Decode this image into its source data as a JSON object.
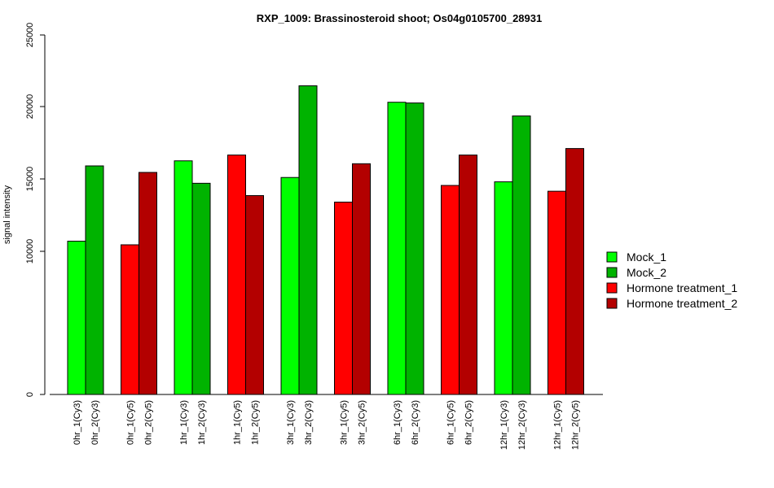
{
  "chart_data": {
    "type": "bar",
    "title": "RXP_1009: Brassinosteroid shoot; Os04g0105700_28931",
    "xlabel": "",
    "ylabel": "signal intensity",
    "ylim": [
      0,
      25000
    ],
    "y_ticks": [
      0,
      10000,
      15000,
      20000,
      25000
    ],
    "y_tick_labels": [
      "0",
      "10000",
      "15000",
      "20000",
      "25000"
    ],
    "y_scale": "non-linear (0 to 10000 compressed)",
    "grid": false,
    "legend_position": "right",
    "legend": [
      {
        "label": "Mock_1",
        "color": "#00ff00"
      },
      {
        "label": "Mock_2",
        "color": "#00b300"
      },
      {
        "label": "Hormone treatment_1",
        "color": "#ff0000"
      },
      {
        "label": "Hormone treatment_2",
        "color": "#b30000"
      }
    ],
    "groups": [
      {
        "bars": [
          {
            "label": "0hr_1(Cy3)",
            "value": 10700,
            "series": 0
          },
          {
            "label": "0hr_2(Cy3)",
            "value": 15900,
            "series": 1
          }
        ]
      },
      {
        "bars": [
          {
            "label": "0hr_1(Cy5)",
            "value": 10450,
            "series": 2
          },
          {
            "label": "0hr_2(Cy5)",
            "value": 15450,
            "series": 3
          }
        ]
      },
      {
        "bars": [
          {
            "label": "1hr_1(Cy3)",
            "value": 16250,
            "series": 0
          },
          {
            "label": "1hr_2(Cy3)",
            "value": 14700,
            "series": 1
          }
        ]
      },
      {
        "bars": [
          {
            "label": "1hr_1(Cy5)",
            "value": 16650,
            "series": 2
          },
          {
            "label": "1hr_2(Cy5)",
            "value": 13850,
            "series": 3
          }
        ]
      },
      {
        "bars": [
          {
            "label": "3hr_1(Cy3)",
            "value": 15100,
            "series": 0
          },
          {
            "label": "3hr_2(Cy3)",
            "value": 21450,
            "series": 1
          }
        ]
      },
      {
        "bars": [
          {
            "label": "3hr_1(Cy5)",
            "value": 13400,
            "series": 2
          },
          {
            "label": "3hr_2(Cy5)",
            "value": 16050,
            "series": 3
          }
        ]
      },
      {
        "bars": [
          {
            "label": "6hr_1(Cy3)",
            "value": 20300,
            "series": 0
          },
          {
            "label": "6hr_2(Cy3)",
            "value": 20250,
            "series": 1
          }
        ]
      },
      {
        "bars": [
          {
            "label": "6hr_1(Cy5)",
            "value": 14550,
            "series": 2
          },
          {
            "label": "6hr_2(Cy5)",
            "value": 16650,
            "series": 3
          }
        ]
      },
      {
        "bars": [
          {
            "label": "12hr_1(Cy3)",
            "value": 14800,
            "series": 0
          },
          {
            "label": "12hr_2(Cy3)",
            "value": 19350,
            "series": 1
          }
        ]
      },
      {
        "bars": [
          {
            "label": "12hr_1(Cy5)",
            "value": 14150,
            "series": 2
          },
          {
            "label": "12hr_2(Cy5)",
            "value": 17100,
            "series": 3
          }
        ]
      }
    ]
  }
}
